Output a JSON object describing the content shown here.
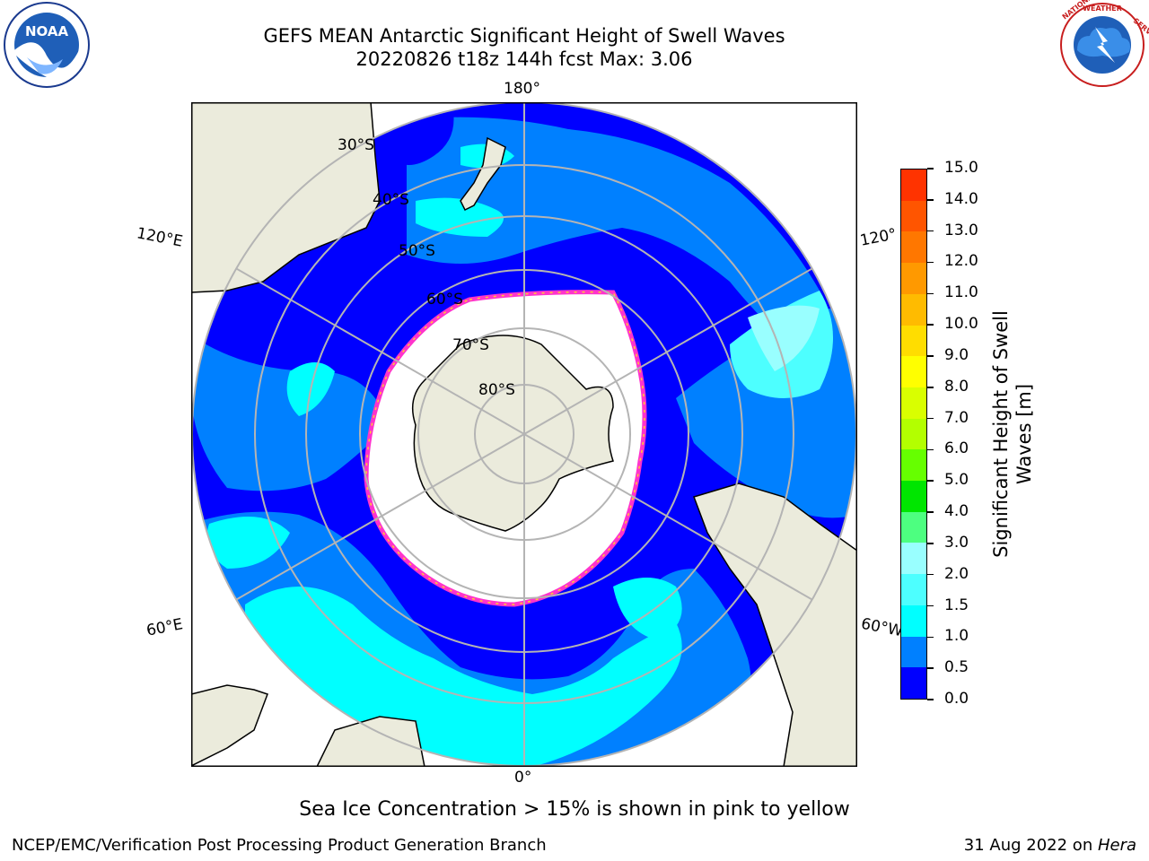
{
  "title": {
    "line1": "GEFS MEAN Antarctic Significant Height of Swell Waves",
    "line2": "20220826 t18z 144h fcst   Max: 3.06"
  },
  "logos": {
    "noaa_text": "NOAA",
    "noaa_ring_text": "NATIONAL OCEANIC AND ATMOSPHERIC ADMINISTRATION · U.S. DEPARTMENT OF COMMERCE",
    "nws_ring_text": "NATIONAL WEATHER SERVICE"
  },
  "map": {
    "projection": "south polar stereographic",
    "longitude_labels": {
      "top": "180°",
      "upper_left": "120°E",
      "upper_right": "120°",
      "lower_left": "60°E",
      "lower_right": "60°W",
      "bottom": "0°"
    },
    "latitude_labels": [
      "30°S",
      "40°S",
      "50°S",
      "60°S",
      "70°S",
      "80°S"
    ],
    "colors": {
      "land": "#ebebdc",
      "coastline": "#000000",
      "grid": "#b4b4b4",
      "ice_edge": "#ff33cc",
      "swell_0_0.5": "#0000ff",
      "swell_0.5_1.0": "#0080ff",
      "swell_1.0_1.5": "#00ffff",
      "swell_1.5_2.0": "#4dffff",
      "swell_2.0_2.5": "#80ffff"
    }
  },
  "colorbar": {
    "label": "Significant Height of Swell Waves [m]",
    "label_line1": "Significant Height of Swell",
    "label_line2": "Waves [m]",
    "ticks": [
      "0.0",
      "0.5",
      "1.0",
      "1.5",
      "2.0",
      "3.0",
      "4.0",
      "5.0",
      "6.0",
      "7.0",
      "8.0",
      "9.0",
      "10.0",
      "11.0",
      "12.0",
      "13.0",
      "14.0",
      "15.0"
    ],
    "colors": [
      "#0000ff",
      "#0080ff",
      "#00ffff",
      "#4dffff",
      "#99ffff",
      "#4dff80",
      "#00e600",
      "#66ff00",
      "#b3ff00",
      "#d9ff00",
      "#ffff00",
      "#ffdd00",
      "#ffbb00",
      "#ff9900",
      "#ff7700",
      "#ff5500",
      "#ff3300",
      "#ff0000"
    ]
  },
  "note": "Sea Ice Concentration > 15% is shown in pink to yellow",
  "footer": {
    "left": "NCEP/EMC/Verification Post Processing Product Generation Branch",
    "right_prefix": "31 Aug 2022 on ",
    "right_host": "Hera"
  }
}
